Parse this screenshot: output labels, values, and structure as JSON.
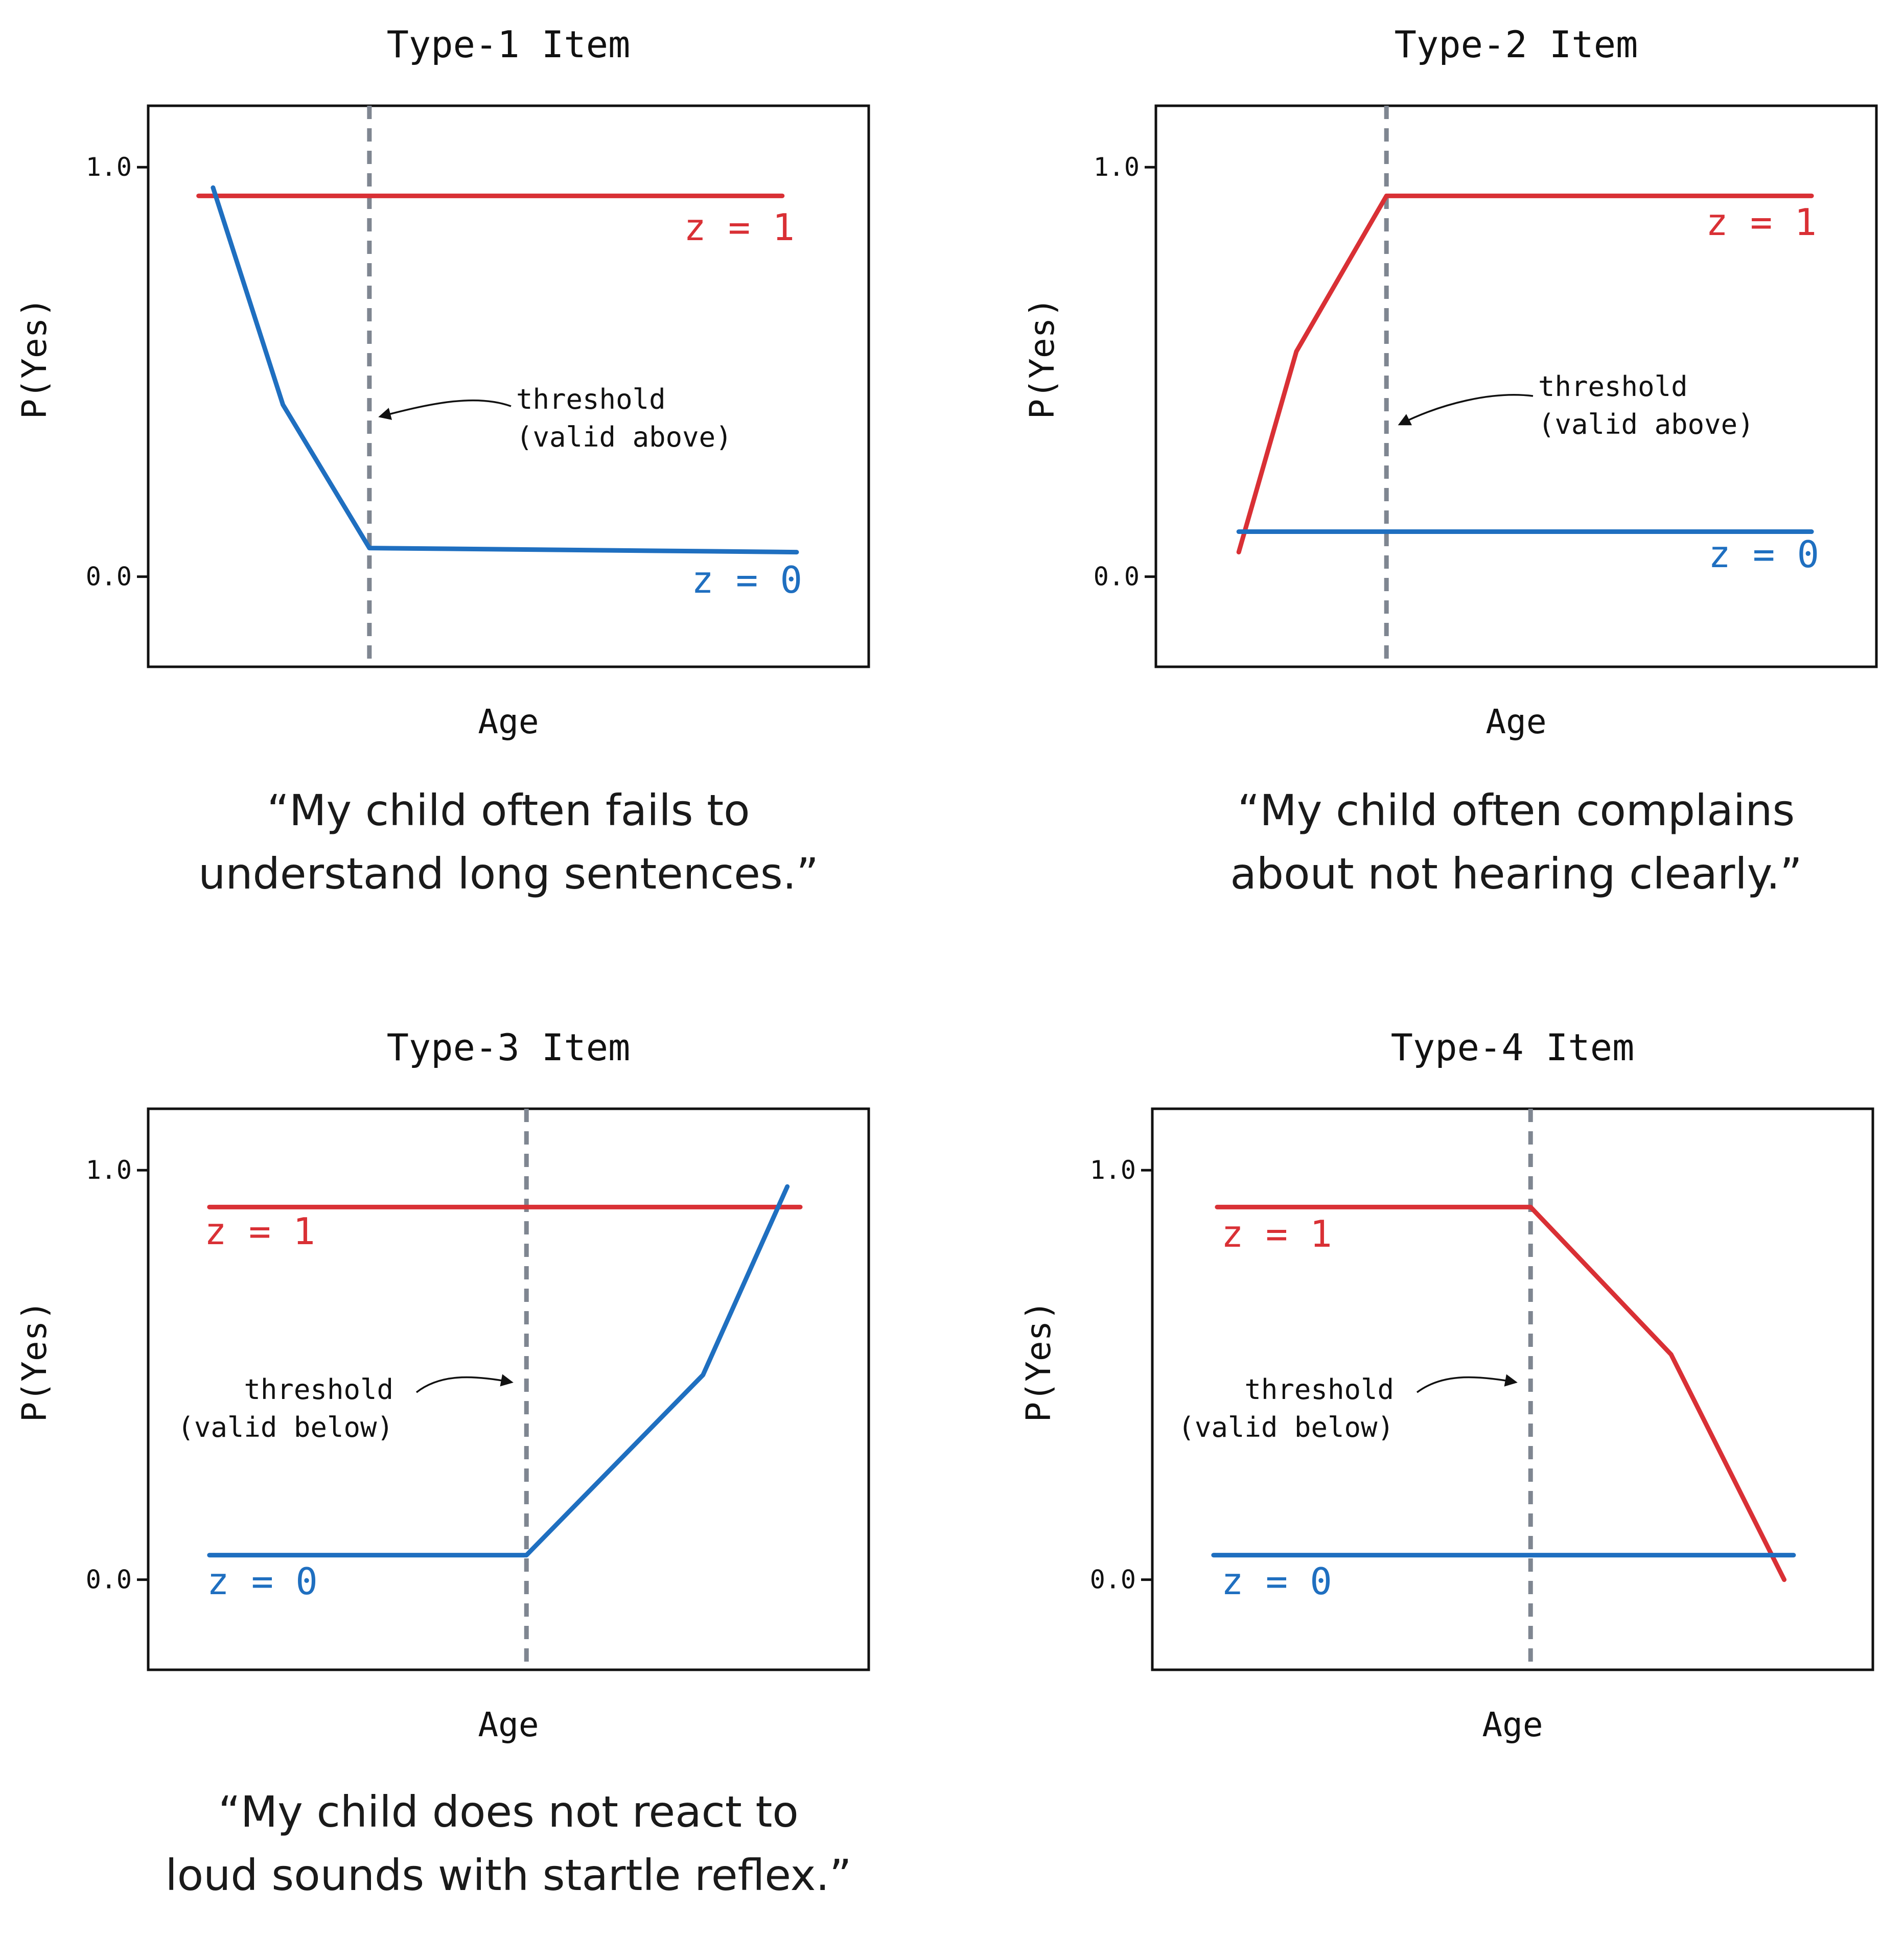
{
  "colors": {
    "z1": "#d93035",
    "z0": "#1f6fc0",
    "threshold": "#7f8691",
    "ink": "#111111"
  },
  "chart_data": [
    {
      "type": "line",
      "title": "Type-1 Item",
      "xlabel": "Age",
      "ylabel": "P(Yes)",
      "yticks": [
        "1.0",
        "0.0"
      ],
      "ylim": [
        -0.22,
        1.15
      ],
      "xlim": [
        0,
        1
      ],
      "threshold": {
        "x": 0.307,
        "text": [
          "threshold",
          "(valid above)"
        ]
      },
      "series": [
        {
          "name": "z = 1",
          "color": "#d93035",
          "x": [
            0.07,
            0.88
          ],
          "y": [
            0.93,
            0.93
          ]
        },
        {
          "name": "z = 0",
          "color": "#1f6fc0",
          "x": [
            0.09,
            0.187,
            0.307,
            0.9
          ],
          "y": [
            0.95,
            0.42,
            0.07,
            0.06
          ]
        }
      ],
      "caption": [
        "“My child often fails to",
        "understand long sentences.”"
      ]
    },
    {
      "type": "line",
      "title": "Type-2 Item",
      "xlabel": "Age",
      "ylabel": "P(Yes)",
      "yticks": [
        "1.0",
        "0.0"
      ],
      "ylim": [
        -0.22,
        1.15
      ],
      "xlim": [
        0,
        1
      ],
      "threshold": {
        "x": 0.32,
        "text": [
          "threshold",
          "(valid above)"
        ]
      },
      "series": [
        {
          "name": "z = 1",
          "color": "#d93035",
          "x": [
            0.115,
            0.195,
            0.32,
            0.91
          ],
          "y": [
            0.06,
            0.55,
            0.93,
            0.93
          ]
        },
        {
          "name": "z = 0",
          "color": "#1f6fc0",
          "x": [
            0.115,
            0.91
          ],
          "y": [
            0.11,
            0.11
          ]
        }
      ],
      "caption": [
        "“My child often complains",
        "about not hearing clearly.”"
      ]
    },
    {
      "type": "line",
      "title": "Type-3 Item",
      "xlabel": "Age",
      "ylabel": "P(Yes)",
      "yticks": [
        "1.0",
        "0.0"
      ],
      "ylim": [
        -0.22,
        1.15
      ],
      "xlim": [
        0,
        1
      ],
      "threshold": {
        "x": 0.525,
        "text": [
          "threshold",
          "(valid below)"
        ]
      },
      "series": [
        {
          "name": "z = 1",
          "color": "#d93035",
          "x": [
            0.085,
            0.905
          ],
          "y": [
            0.91,
            0.91
          ]
        },
        {
          "name": "z = 0",
          "color": "#1f6fc0",
          "x": [
            0.085,
            0.525,
            0.77,
            0.887
          ],
          "y": [
            0.06,
            0.06,
            0.5,
            0.96
          ]
        }
      ],
      "caption": [
        "“My child does not react to",
        "loud sounds with startle reflex.”"
      ]
    },
    {
      "type": "line",
      "title": "Type-4 Item",
      "xlabel": "Age",
      "ylabel": "P(Yes)",
      "yticks": [
        "1.0",
        "0.0"
      ],
      "ylim": [
        -0.22,
        1.15
      ],
      "xlim": [
        0,
        1
      ],
      "threshold": {
        "x": 0.525,
        "text": [
          "threshold",
          "(valid below)"
        ]
      },
      "series": [
        {
          "name": "z = 1",
          "color": "#d93035",
          "x": [
            0.09,
            0.525,
            0.72,
            0.877
          ],
          "y": [
            0.91,
            0.91,
            0.55,
            0.0
          ]
        },
        {
          "name": "z = 0",
          "color": "#1f6fc0",
          "x": [
            0.085,
            0.89
          ],
          "y": [
            0.06,
            0.06
          ]
        }
      ],
      "caption": []
    }
  ]
}
